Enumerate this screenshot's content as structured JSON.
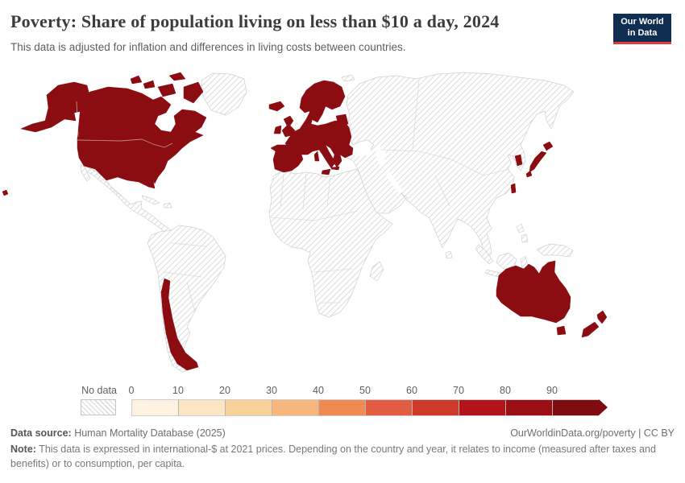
{
  "header": {
    "title": "Poverty: Share of population living on less than $10 a day, 2024",
    "subtitle": "This data is adjusted for inflation and differences in living costs between countries.",
    "logo_line1": "Our World",
    "logo_line2": "in Data"
  },
  "legend": {
    "no_data_label": "No data",
    "ticks": [
      "0",
      "10",
      "20",
      "30",
      "40",
      "50",
      "60",
      "70",
      "80",
      "90"
    ],
    "bin_colors": [
      "#fdf2e0",
      "#fbe5c2",
      "#f9d29b",
      "#f6b67d",
      "#ef8a52",
      "#e25c43",
      "#cd3a2a",
      "#b31419",
      "#9b0e13",
      "#7f0c10"
    ]
  },
  "footer": {
    "data_source_label": "Data source:",
    "data_source_value": " Human Mortality Database (2025)",
    "rights": "OurWorldinData.org/poverty | CC BY",
    "note_label": "Note:",
    "note_value": " This data is expressed in international-$ at 2021 prices. Depending on the country and year, it relates to income (measured after taxes and benefits) or to consumption, per capita."
  },
  "colors": {
    "data_fill": "#8b0d12",
    "no_data_stripe": "#d8d8d8",
    "land_outline": "#cfcfcf",
    "logo_bg": "#0f2e52",
    "logo_underline": "#e0393e",
    "title_text": "#3c3c3c",
    "muted_text": "#5f5f5f"
  },
  "chart_data": {
    "type": "heatmap",
    "subtype": "world-choropleth",
    "title": "Poverty: Share of population living on less than $10 a day, 2024",
    "unit": "share of population (%)",
    "scale": {
      "tick_labels": [
        0,
        10,
        20,
        30,
        40,
        50,
        60,
        70,
        80,
        90
      ],
      "bins": [
        "0-10",
        "10-20",
        "20-30",
        "30-40",
        "40-50",
        "50-60",
        "60-70",
        "70-80",
        "80-90",
        "90-100"
      ],
      "bin_colors": [
        "#fdf2e0",
        "#fbe5c2",
        "#f9d29b",
        "#f6b67d",
        "#ef8a52",
        "#e25c43",
        "#cd3a2a",
        "#b31419",
        "#9b0e13",
        "#7f0c10"
      ],
      "no_data": "No data (hatched)"
    },
    "series": [
      {
        "name": "Countries shaded dark red (90-100 bin)",
        "bin": "90-100",
        "countries": [
          "United States",
          "Canada",
          "Chile",
          "Iceland",
          "Ireland",
          "United Kingdom",
          "Norway",
          "Sweden",
          "Finland",
          "Denmark",
          "Estonia",
          "Latvia",
          "Lithuania",
          "Poland",
          "Germany",
          "Netherlands",
          "Belgium",
          "Luxembourg",
          "France",
          "Spain",
          "Portugal",
          "Switzerland",
          "Austria",
          "Czechia",
          "Slovakia",
          "Hungary",
          "Slovenia",
          "Croatia",
          "Italy",
          "Greece",
          "Bulgaria",
          "Romania",
          "Japan",
          "South Korea",
          "Taiwan",
          "Australia",
          "New Zealand"
        ]
      }
    ],
    "no_data_regions": [
      "Greenland",
      "Mexico and Central America",
      "Caribbean",
      "South America except Chile",
      "Africa",
      "Russia",
      "Ukraine and Belarus",
      "Turkey",
      "Middle East",
      "Central and South Asia",
      "China",
      "Southeast Asia",
      "Indonesia",
      "Papua New Guinea"
    ],
    "legend_position": "bottom",
    "grid": false
  }
}
